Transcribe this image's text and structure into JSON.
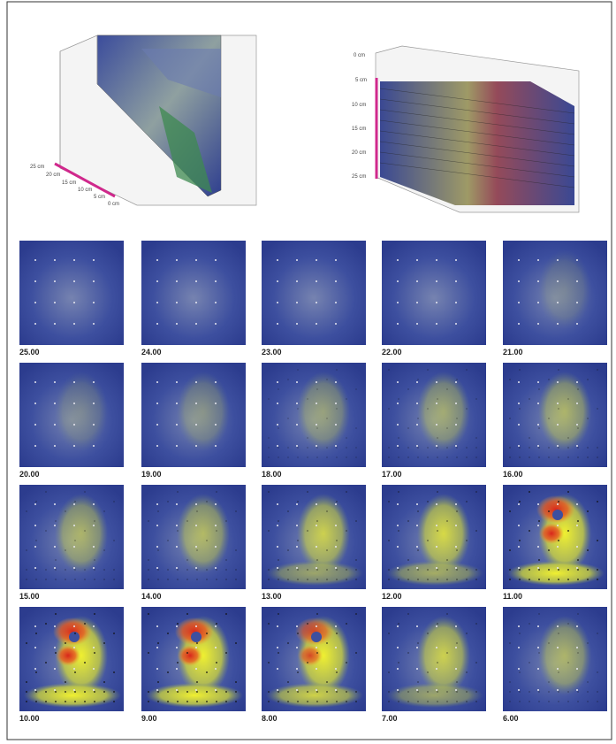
{
  "volumes": [
    {
      "depth_labels": [
        "25 cm",
        "20 cm",
        "15 cm",
        "10 cm",
        "5 cm",
        "0 cm"
      ]
    },
    {
      "depth_labels": [
        "0 cm",
        "5 cm",
        "10 cm",
        "15 cm",
        "20 cm",
        "25 cm"
      ]
    }
  ],
  "slices": [
    "25.00",
    "24.00",
    "23.00",
    "22.00",
    "21.00",
    "20.00",
    "19.00",
    "18.00",
    "17.00",
    "16.00",
    "15.00",
    "14.00",
    "13.00",
    "12.00",
    "11.00",
    "10.00",
    "9.00",
    "8.00",
    "7.00",
    "6.00"
  ]
}
